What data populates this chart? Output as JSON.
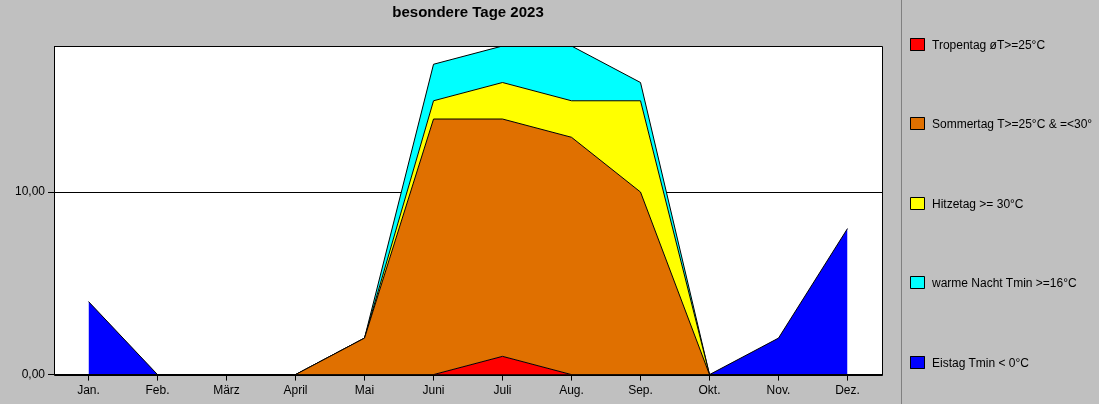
{
  "chart_data": {
    "type": "area",
    "title": "besondere Tage 2023",
    "categories": [
      "Jan.",
      "Feb.",
      "März",
      "April",
      "Mai",
      "Juni",
      "Juli",
      "Aug.",
      "Sep.",
      "Okt.",
      "Nov.",
      "Dez."
    ],
    "series": [
      {
        "name": "Tropentag øT>=25°C",
        "color": "#ff0000",
        "values": [
          0,
          0,
          0,
          0,
          0,
          0,
          1,
          0,
          0,
          0,
          0,
          0
        ]
      },
      {
        "name": "Sommertag T>=25°C & =<30°",
        "color": "#e07000",
        "values": [
          0,
          0,
          0,
          0,
          2,
          14,
          13,
          13,
          10,
          0,
          0,
          0
        ]
      },
      {
        "name": "Hitzetag >= 30°C",
        "color": "#ffff00",
        "values": [
          0,
          0,
          0,
          0,
          0,
          1,
          2,
          2,
          5,
          0,
          0,
          0
        ]
      },
      {
        "name": "warme Nacht Tmin >=16°C",
        "color": "#00ffff",
        "values": [
          0,
          0,
          0,
          0,
          0,
          2,
          2,
          3,
          1,
          0,
          0,
          0
        ]
      },
      {
        "name": "Eistag Tmin < 0°C",
        "color": "#0000ff",
        "values": [
          4,
          0,
          null,
          null,
          null,
          null,
          null,
          null,
          null,
          0,
          2,
          8
        ]
      }
    ],
    "stacked": true,
    "ylim": [
      0,
      18
    ],
    "yticks": [
      {
        "value": 0,
        "label": "0,00"
      },
      {
        "value": 10,
        "label": "10,00"
      }
    ],
    "grid": "y",
    "legend": "right"
  }
}
